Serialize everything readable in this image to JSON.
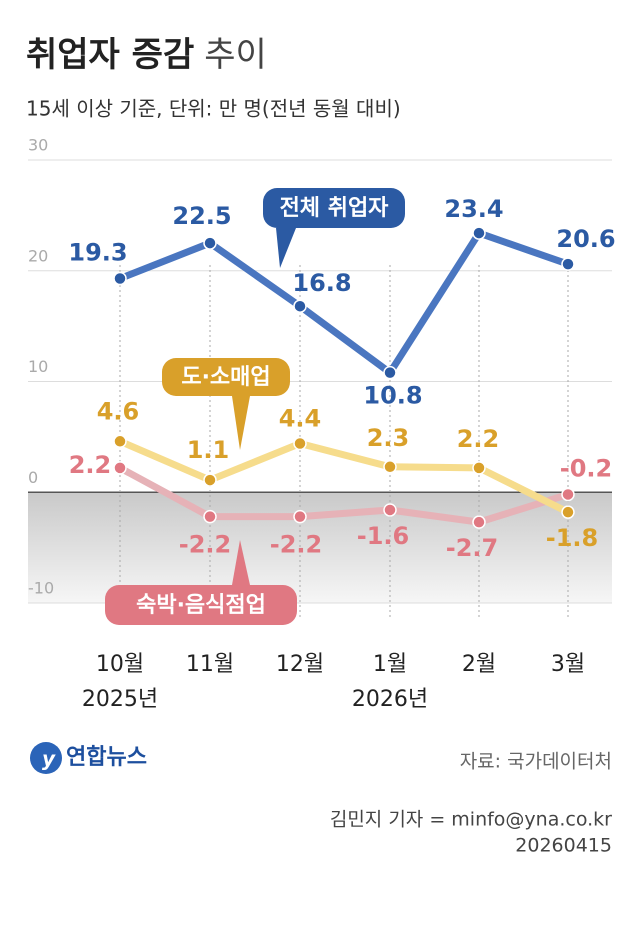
{
  "chart_data": {
    "type": "line",
    "title": "취업자 증감",
    "title_light": "추이",
    "subtitle": "15세 이상 기준, 단위: 만 명(전년 동월 대비)",
    "categories": [
      "10월",
      "11월",
      "12월",
      "1월",
      "2월",
      "3월"
    ],
    "category_years": [
      "2025년",
      null,
      null,
      "2026년",
      null,
      null
    ],
    "ylim": [
      -10,
      30
    ],
    "yticks": [
      30,
      20,
      10,
      0,
      -10
    ],
    "negative_shade": true,
    "series": [
      {
        "name": "전체 취업자",
        "color": "#4a76c0",
        "marker_color": "#2b5aa3",
        "values": [
          19.3,
          22.5,
          16.8,
          10.8,
          23.4,
          20.6
        ]
      },
      {
        "name": "도·소매업",
        "color": "#f6dc8c",
        "marker_color": "#d9a02a",
        "values": [
          4.6,
          1.1,
          4.4,
          2.3,
          2.2,
          -1.8
        ]
      },
      {
        "name": "숙박·음식점업",
        "color": "#e6b2b7",
        "marker_color": "#e07882",
        "values": [
          2.2,
          -2.2,
          -2.2,
          -1.6,
          -2.7,
          -0.2
        ]
      }
    ],
    "logo": "연합뉴스",
    "source": "자료: 국가데이터처",
    "byline": "김민지 기자 = minfo@yna.co.kr",
    "date": "20260415"
  }
}
